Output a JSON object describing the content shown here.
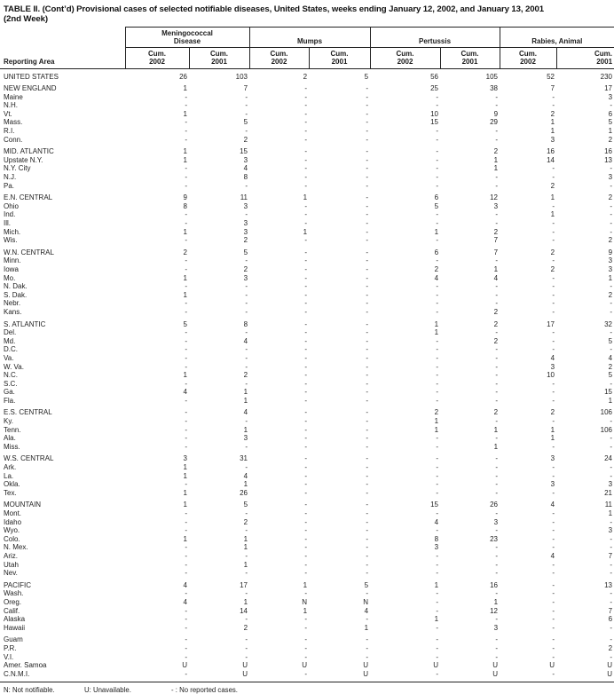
{
  "title": {
    "line1": "TABLE II. (Cont’d) Provisional cases of selected notifiable diseases, United States, weeks ending January 12, 2002, and January 13, 2001",
    "line2": "(2nd Week)"
  },
  "table": {
    "reporting_area_label": "Reporting Area",
    "cum_label": "Cum.",
    "year_labels": [
      "2002",
      "2001"
    ],
    "groups": [
      {
        "key": "meningococcal-disease",
        "label": "Meningococcal\nDisease"
      },
      {
        "key": "mumps",
        "label": "Mumps"
      },
      {
        "key": "pertussis",
        "label": "Pertussis"
      },
      {
        "key": "rabies-animal",
        "label": "Rabies, Animal"
      }
    ],
    "sections": [
      {
        "rows": [
          {
            "area": "UNITED STATES",
            "total": true,
            "values": [
              "26",
              "103",
              "2",
              "5",
              "56",
              "105",
              "52",
              "230"
            ]
          }
        ]
      },
      {
        "rows": [
          {
            "area": "NEW ENGLAND",
            "total": true,
            "values": [
              "1",
              "7",
              "-",
              "-",
              "25",
              "38",
              "7",
              "17"
            ]
          },
          {
            "area": "Maine",
            "values": [
              "-",
              "-",
              "-",
              "-",
              "-",
              "-",
              "-",
              "3"
            ]
          },
          {
            "area": "N.H.",
            "values": [
              "-",
              "-",
              "-",
              "-",
              "-",
              "-",
              "-",
              "-"
            ]
          },
          {
            "area": "Vt.",
            "values": [
              "1",
              "-",
              "-",
              "-",
              "10",
              "9",
              "2",
              "6"
            ]
          },
          {
            "area": "Mass.",
            "values": [
              "-",
              "5",
              "-",
              "-",
              "15",
              "29",
              "1",
              "5"
            ]
          },
          {
            "area": "R.I.",
            "values": [
              "-",
              "-",
              "-",
              "-",
              "-",
              "-",
              "1",
              "1"
            ]
          },
          {
            "area": "Conn.",
            "values": [
              "-",
              "2",
              "-",
              "-",
              "-",
              "-",
              "3",
              "2"
            ]
          }
        ]
      },
      {
        "rows": [
          {
            "area": "MID. ATLANTIC",
            "total": true,
            "values": [
              "1",
              "15",
              "-",
              "-",
              "-",
              "2",
              "16",
              "16"
            ]
          },
          {
            "area": "Upstate N.Y.",
            "values": [
              "1",
              "3",
              "-",
              "-",
              "-",
              "1",
              "14",
              "13"
            ]
          },
          {
            "area": "N.Y. City",
            "values": [
              "-",
              "4",
              "-",
              "-",
              "-",
              "1",
              "-",
              "-"
            ]
          },
          {
            "area": "N.J.",
            "values": [
              "-",
              "8",
              "-",
              "-",
              "-",
              "-",
              "-",
              "3"
            ]
          },
          {
            "area": "Pa.",
            "values": [
              "-",
              "-",
              "-",
              "-",
              "-",
              "-",
              "2",
              "-"
            ]
          }
        ]
      },
      {
        "rows": [
          {
            "area": "E.N. CENTRAL",
            "total": true,
            "values": [
              "9",
              "11",
              "1",
              "-",
              "6",
              "12",
              "1",
              "2"
            ]
          },
          {
            "area": "Ohio",
            "values": [
              "8",
              "3",
              "-",
              "-",
              "5",
              "3",
              "-",
              "-"
            ]
          },
          {
            "area": "Ind.",
            "values": [
              "-",
              "-",
              "-",
              "-",
              "-",
              "-",
              "1",
              "-"
            ]
          },
          {
            "area": "Ill.",
            "values": [
              "-",
              "3",
              "-",
              "-",
              "-",
              "-",
              "-",
              "-"
            ]
          },
          {
            "area": "Mich.",
            "values": [
              "1",
              "3",
              "1",
              "-",
              "1",
              "2",
              "-",
              "-"
            ]
          },
          {
            "area": "Wis.",
            "values": [
              "-",
              "2",
              "-",
              "-",
              "-",
              "7",
              "-",
              "2"
            ]
          }
        ]
      },
      {
        "rows": [
          {
            "area": "W.N. CENTRAL",
            "total": true,
            "values": [
              "2",
              "5",
              "-",
              "-",
              "6",
              "7",
              "2",
              "9"
            ]
          },
          {
            "area": "Minn.",
            "values": [
              "-",
              "-",
              "-",
              "-",
              "-",
              "-",
              "-",
              "3"
            ]
          },
          {
            "area": "Iowa",
            "values": [
              "-",
              "2",
              "-",
              "-",
              "2",
              "1",
              "2",
              "3"
            ]
          },
          {
            "area": "Mo.",
            "values": [
              "1",
              "3",
              "-",
              "-",
              "4",
              "4",
              "-",
              "1"
            ]
          },
          {
            "area": "N. Dak.",
            "values": [
              "-",
              "-",
              "-",
              "-",
              "-",
              "-",
              "-",
              "-"
            ]
          },
          {
            "area": "S. Dak.",
            "values": [
              "1",
              "-",
              "-",
              "-",
              "-",
              "-",
              "-",
              "2"
            ]
          },
          {
            "area": "Nebr.",
            "values": [
              "-",
              "-",
              "-",
              "-",
              "-",
              "-",
              "-",
              "-"
            ]
          },
          {
            "area": "Kans.",
            "values": [
              "-",
              "-",
              "-",
              "-",
              "-",
              "2",
              "-",
              "-"
            ]
          }
        ]
      },
      {
        "rows": [
          {
            "area": "S. ATLANTIC",
            "total": true,
            "values": [
              "5",
              "8",
              "-",
              "-",
              "1",
              "2",
              "17",
              "32"
            ]
          },
          {
            "area": "Del.",
            "values": [
              "-",
              "-",
              "-",
              "-",
              "1",
              "-",
              "-",
              "-"
            ]
          },
          {
            "area": "Md.",
            "values": [
              "-",
              "4",
              "-",
              "-",
              "-",
              "2",
              "-",
              "5"
            ]
          },
          {
            "area": "D.C.",
            "values": [
              "-",
              "-",
              "-",
              "-",
              "-",
              "-",
              "-",
              "-"
            ]
          },
          {
            "area": "Va.",
            "values": [
              "-",
              "-",
              "-",
              "-",
              "-",
              "-",
              "4",
              "4"
            ]
          },
          {
            "area": "W. Va.",
            "values": [
              "-",
              "-",
              "-",
              "-",
              "-",
              "-",
              "3",
              "2"
            ]
          },
          {
            "area": "N.C.",
            "values": [
              "1",
              "2",
              "-",
              "-",
              "-",
              "-",
              "10",
              "5"
            ]
          },
          {
            "area": "S.C.",
            "values": [
              "-",
              "-",
              "-",
              "-",
              "-",
              "-",
              "-",
              "-"
            ]
          },
          {
            "area": "Ga.",
            "values": [
              "4",
              "1",
              "-",
              "-",
              "-",
              "-",
              "-",
              "15"
            ]
          },
          {
            "area": "Fla.",
            "values": [
              "-",
              "1",
              "-",
              "-",
              "-",
              "-",
              "-",
              "1"
            ]
          }
        ]
      },
      {
        "rows": [
          {
            "area": "E.S. CENTRAL",
            "total": true,
            "values": [
              "-",
              "4",
              "-",
              "-",
              "2",
              "2",
              "2",
              "106"
            ]
          },
          {
            "area": "Ky.",
            "values": [
              "-",
              "-",
              "-",
              "-",
              "1",
              "-",
              "-",
              "-"
            ]
          },
          {
            "area": "Tenn.",
            "values": [
              "-",
              "1",
              "-",
              "-",
              "1",
              "1",
              "1",
              "106"
            ]
          },
          {
            "area": "Ala.",
            "values": [
              "-",
              "3",
              "-",
              "-",
              "-",
              "-",
              "1",
              "-"
            ]
          },
          {
            "area": "Miss.",
            "values": [
              "-",
              "-",
              "-",
              "-",
              "-",
              "1",
              "-",
              "-"
            ]
          }
        ]
      },
      {
        "rows": [
          {
            "area": "W.S. CENTRAL",
            "total": true,
            "values": [
              "3",
              "31",
              "-",
              "-",
              "-",
              "-",
              "3",
              "24"
            ]
          },
          {
            "area": "Ark.",
            "values": [
              "1",
              "-",
              "-",
              "-",
              "-",
              "-",
              "-",
              "-"
            ]
          },
          {
            "area": "La.",
            "values": [
              "1",
              "4",
              "-",
              "-",
              "-",
              "-",
              "-",
              "-"
            ]
          },
          {
            "area": "Okla.",
            "values": [
              "-",
              "1",
              "-",
              "-",
              "-",
              "-",
              "3",
              "3"
            ]
          },
          {
            "area": "Tex.",
            "values": [
              "1",
              "26",
              "-",
              "-",
              "-",
              "-",
              "-",
              "21"
            ]
          }
        ]
      },
      {
        "rows": [
          {
            "area": "MOUNTAIN",
            "total": true,
            "values": [
              "1",
              "5",
              "-",
              "-",
              "15",
              "26",
              "4",
              "11"
            ]
          },
          {
            "area": "Mont.",
            "values": [
              "-",
              "-",
              "-",
              "-",
              "-",
              "-",
              "-",
              "1"
            ]
          },
          {
            "area": "Idaho",
            "values": [
              "-",
              "2",
              "-",
              "-",
              "4",
              "3",
              "-",
              "-"
            ]
          },
          {
            "area": "Wyo.",
            "values": [
              "-",
              "-",
              "-",
              "-",
              "-",
              "-",
              "-",
              "3"
            ]
          },
          {
            "area": "Colo.",
            "values": [
              "1",
              "1",
              "-",
              "-",
              "8",
              "23",
              "-",
              "-"
            ]
          },
          {
            "area": "N. Mex.",
            "values": [
              "-",
              "1",
              "-",
              "-",
              "3",
              "-",
              "-",
              "-"
            ]
          },
          {
            "area": "Ariz.",
            "values": [
              "-",
              "-",
              "-",
              "-",
              "-",
              "-",
              "4",
              "7"
            ]
          },
          {
            "area": "Utah",
            "values": [
              "-",
              "1",
              "-",
              "-",
              "-",
              "-",
              "-",
              "-"
            ]
          },
          {
            "area": "Nev.",
            "values": [
              "-",
              "-",
              "-",
              "-",
              "-",
              "-",
              "-",
              "-"
            ]
          }
        ]
      },
      {
        "rows": [
          {
            "area": "PACIFIC",
            "total": true,
            "values": [
              "4",
              "17",
              "1",
              "5",
              "1",
              "16",
              "-",
              "13"
            ]
          },
          {
            "area": "Wash.",
            "values": [
              "-",
              "-",
              "-",
              "-",
              "-",
              "-",
              "-",
              "-"
            ]
          },
          {
            "area": "Oreg.",
            "values": [
              "4",
              "1",
              "N",
              "N",
              "-",
              "1",
              "-",
              "-"
            ]
          },
          {
            "area": "Calif.",
            "values": [
              "-",
              "14",
              "1",
              "4",
              "-",
              "12",
              "-",
              "7"
            ]
          },
          {
            "area": "Alaska",
            "values": [
              "-",
              "-",
              "-",
              "-",
              "1",
              "-",
              "-",
              "6"
            ]
          },
          {
            "area": "Hawaii",
            "values": [
              "-",
              "2",
              "-",
              "1",
              "-",
              "3",
              "-",
              "-"
            ]
          }
        ]
      },
      {
        "rows": [
          {
            "area": "Guam",
            "values": [
              "-",
              "-",
              "-",
              "-",
              "-",
              "-",
              "-",
              "-"
            ]
          },
          {
            "area": "P.R.",
            "values": [
              "-",
              "-",
              "-",
              "-",
              "-",
              "-",
              "-",
              "2"
            ]
          },
          {
            "area": "V.I.",
            "values": [
              "-",
              "-",
              "-",
              "-",
              "-",
              "-",
              "-",
              "-"
            ]
          },
          {
            "area": "Amer. Samoa",
            "values": [
              "U",
              "U",
              "U",
              "U",
              "U",
              "U",
              "U",
              "U"
            ]
          },
          {
            "area": "C.N.M.I.",
            "values": [
              "-",
              "U",
              "-",
              "U",
              "-",
              "U",
              "-",
              "U"
            ]
          }
        ]
      }
    ]
  },
  "footnotes": [
    "N: Not notifiable.",
    "U: Unavailable.",
    "- : No reported cases."
  ]
}
